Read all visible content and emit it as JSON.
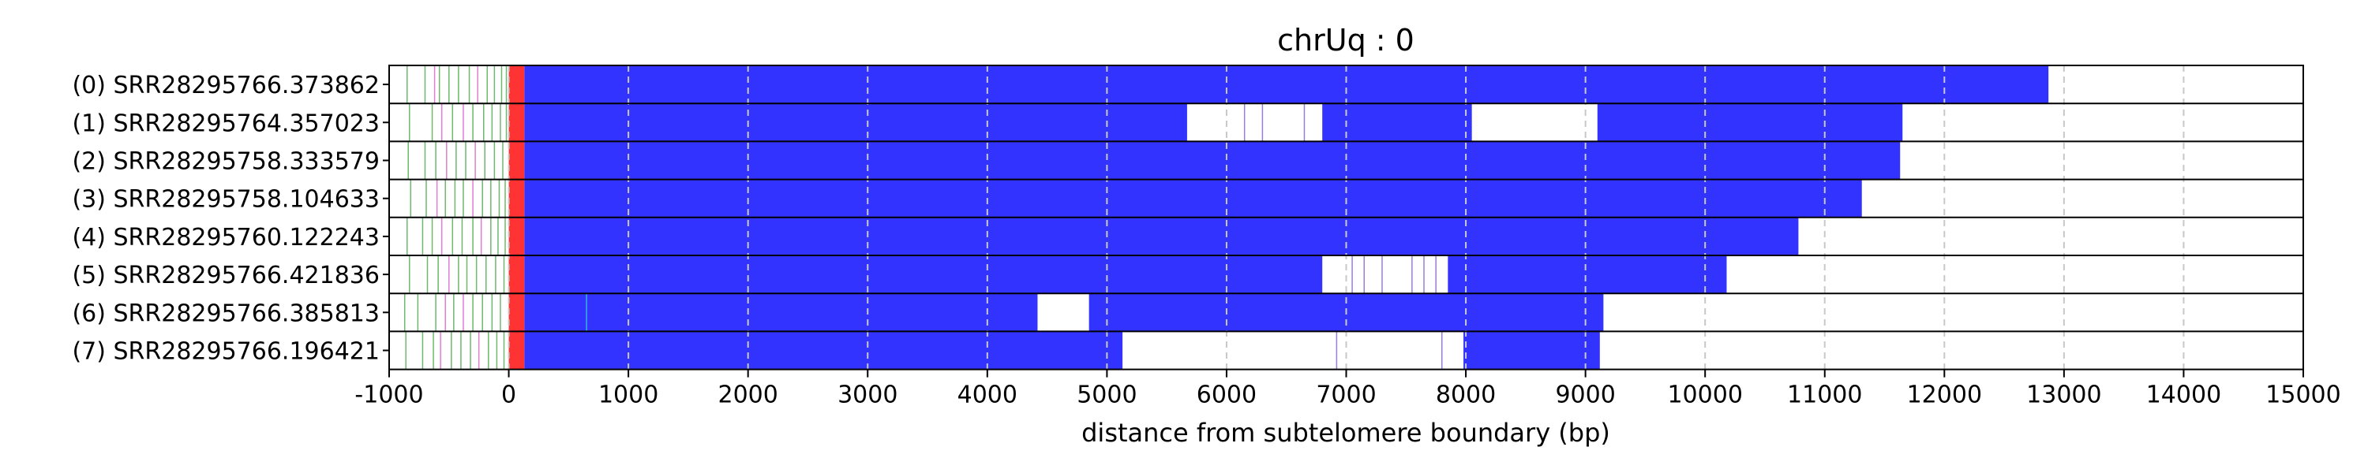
{
  "chart_data": {
    "type": "bar",
    "title": "chrUq : 0",
    "xlabel": "distance from subtelomere boundary (bp)",
    "ylabel": "",
    "xlim": [
      -1000,
      15000
    ],
    "x_ticks": [
      "-1000",
      "0",
      "1000",
      "2000",
      "3000",
      "4000",
      "5000",
      "6000",
      "7000",
      "8000",
      "9000",
      "10000",
      "11000",
      "12000",
      "13000",
      "14000",
      "15000"
    ],
    "x_tick_values": [
      -1000,
      0,
      1000,
      2000,
      3000,
      4000,
      5000,
      6000,
      7000,
      8000,
      9000,
      10000,
      11000,
      12000,
      13000,
      14000,
      15000
    ],
    "grid": "vertical-dashed",
    "colors": {
      "subtelomere": "#ff3333",
      "telomere": "#3333ff",
      "grid": "#c8c8c8",
      "tick_green": "#55aa55",
      "tick_pink": "#dd66cc",
      "tick_cyan": "#33cccc",
      "tick_purple": "#8866cc",
      "row_border": "#000000"
    },
    "series": [
      {
        "label": "(0) SRR28295766.373862",
        "red": [
          0,
          130
        ],
        "blue": [
          [
            130,
            12870
          ]
        ],
        "marks": [
          [
            -850,
            "green"
          ],
          [
            -700,
            "green"
          ],
          [
            -620,
            "pink"
          ],
          [
            -580,
            "green"
          ],
          [
            -500,
            "green"
          ],
          [
            -420,
            "green"
          ],
          [
            -330,
            "green"
          ],
          [
            -260,
            "pink"
          ],
          [
            -180,
            "green"
          ],
          [
            -120,
            "green"
          ],
          [
            -60,
            "green"
          ],
          [
            -20,
            "green"
          ]
        ]
      },
      {
        "label": "(1) SRR28295764.357023",
        "red": [
          0,
          130
        ],
        "blue": [
          [
            130,
            5670
          ],
          [
            6800,
            8050
          ],
          [
            9100,
            11650
          ]
        ],
        "marks": [
          [
            -830,
            "green"
          ],
          [
            -640,
            "green"
          ],
          [
            -560,
            "pink"
          ],
          [
            -470,
            "green"
          ],
          [
            -380,
            "pink"
          ],
          [
            -300,
            "green"
          ],
          [
            -210,
            "green"
          ],
          [
            -140,
            "green"
          ],
          [
            -70,
            "green"
          ],
          [
            -20,
            "green"
          ],
          [
            6150,
            "purple"
          ],
          [
            6300,
            "purple"
          ],
          [
            6650,
            "purple"
          ]
        ]
      },
      {
        "label": "(2) SRR28295758.333579",
        "red": [
          0,
          130
        ],
        "blue": [
          [
            130,
            11630
          ]
        ],
        "marks": [
          [
            -840,
            "green"
          ],
          [
            -700,
            "green"
          ],
          [
            -610,
            "green"
          ],
          [
            -520,
            "pink"
          ],
          [
            -440,
            "green"
          ],
          [
            -360,
            "green"
          ],
          [
            -280,
            "pink"
          ],
          [
            -200,
            "green"
          ],
          [
            -120,
            "green"
          ],
          [
            -50,
            "green"
          ]
        ]
      },
      {
        "label": "(3) SRR28295758.104633",
        "red": [
          0,
          130
        ],
        "blue": [
          [
            130,
            11310
          ]
        ],
        "marks": [
          [
            -820,
            "green"
          ],
          [
            -690,
            "green"
          ],
          [
            -600,
            "pink"
          ],
          [
            -530,
            "green"
          ],
          [
            -450,
            "green"
          ],
          [
            -380,
            "green"
          ],
          [
            -300,
            "pink"
          ],
          [
            -220,
            "green"
          ],
          [
            -150,
            "green"
          ],
          [
            -80,
            "green"
          ],
          [
            -30,
            "green"
          ]
        ]
      },
      {
        "label": "(4) SRR28295760.122243",
        "red": [
          0,
          130
        ],
        "blue": [
          [
            130,
            10780
          ]
        ],
        "marks": [
          [
            -850,
            "green"
          ],
          [
            -720,
            "green"
          ],
          [
            -640,
            "green"
          ],
          [
            -560,
            "pink"
          ],
          [
            -470,
            "green"
          ],
          [
            -390,
            "green"
          ],
          [
            -300,
            "green"
          ],
          [
            -230,
            "pink"
          ],
          [
            -150,
            "green"
          ],
          [
            -90,
            "green"
          ],
          [
            -30,
            "green"
          ]
        ]
      },
      {
        "label": "(5) SRR28295766.421836",
        "red": [
          0,
          130
        ],
        "blue": [
          [
            130,
            6800
          ],
          [
            7850,
            10180
          ]
        ],
        "marks": [
          [
            -830,
            "green"
          ],
          [
            -680,
            "green"
          ],
          [
            -590,
            "green"
          ],
          [
            -500,
            "pink"
          ],
          [
            -420,
            "green"
          ],
          [
            -350,
            "green"
          ],
          [
            -270,
            "green"
          ],
          [
            -190,
            "green"
          ],
          [
            -110,
            "green"
          ],
          [
            -40,
            "green"
          ],
          [
            7050,
            "purple"
          ],
          [
            7150,
            "purple"
          ],
          [
            7300,
            "purple"
          ],
          [
            7550,
            "purple"
          ],
          [
            7650,
            "purple"
          ],
          [
            7750,
            "purple"
          ]
        ]
      },
      {
        "label": "(6) SRR28295766.385813",
        "red": [
          0,
          130
        ],
        "blue": [
          [
            130,
            4420
          ],
          [
            4850,
            9150
          ]
        ],
        "marks": [
          [
            -870,
            "green"
          ],
          [
            -760,
            "green"
          ],
          [
            -610,
            "green"
          ],
          [
            -530,
            "pink"
          ],
          [
            -460,
            "green"
          ],
          [
            -380,
            "pink"
          ],
          [
            -300,
            "green"
          ],
          [
            -220,
            "green"
          ],
          [
            -140,
            "green"
          ],
          [
            -70,
            "green"
          ],
          [
            650,
            "cyan"
          ]
        ]
      },
      {
        "label": "(7) SRR28295766.196421",
        "red": [
          0,
          130
        ],
        "blue": [
          [
            130,
            5130
          ],
          [
            7980,
            9120
          ]
        ],
        "marks": [
          [
            -860,
            "green"
          ],
          [
            -720,
            "green"
          ],
          [
            -630,
            "green"
          ],
          [
            -570,
            "pink"
          ],
          [
            -480,
            "green"
          ],
          [
            -400,
            "green"
          ],
          [
            -320,
            "green"
          ],
          [
            -250,
            "pink"
          ],
          [
            -170,
            "green"
          ],
          [
            -100,
            "green"
          ],
          [
            -40,
            "green"
          ],
          [
            6920,
            "purple"
          ],
          [
            7800,
            "purple"
          ]
        ]
      }
    ]
  }
}
